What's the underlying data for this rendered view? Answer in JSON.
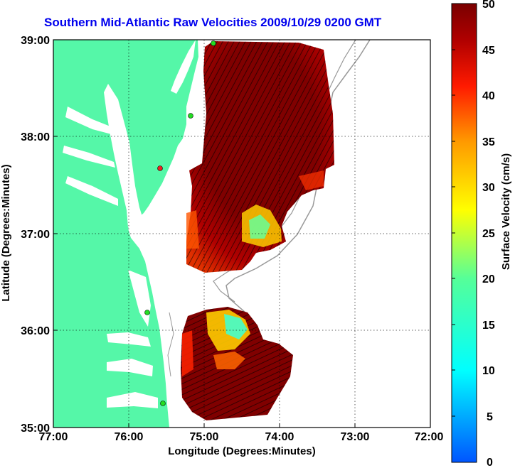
{
  "title": "Southern Mid-Atlantic Raw Velocities 2009/10/29 0200 GMT",
  "axes": {
    "xlabel": "Longitude (Degrees:Minutes)",
    "ylabel": "Latitude (Degrees:Minutes)",
    "x_ticks": [
      "77:00",
      "76:00",
      "75:00",
      "74:00",
      "73:00",
      "72:00"
    ],
    "y_ticks": [
      "39:00",
      "38:00",
      "37:00",
      "36:00",
      "35:00"
    ],
    "x_range": [
      -77,
      -72
    ],
    "y_range": [
      35,
      39
    ],
    "grid": true
  },
  "colorbar": {
    "label": "Surface Velocity (cm/s)",
    "ticks": [
      "50",
      "45",
      "40",
      "35",
      "30",
      "25",
      "20",
      "15",
      "10",
      "5",
      "0"
    ],
    "range": [
      0,
      50
    ]
  },
  "colors": {
    "land": "#55f7a8",
    "coast": "#000000",
    "isobath": "#999999",
    "high_velocity": "#7a0000",
    "title": "#0000ee"
  },
  "stations": [
    {
      "lon": -74.75,
      "lat": 38.97,
      "status": "active"
    },
    {
      "lon": -75.1,
      "lat": 38.22,
      "status": "active"
    },
    {
      "lon": -75.5,
      "lat": 37.7,
      "status": "inactive"
    },
    {
      "lon": -75.35,
      "lat": 36.18,
      "status": "active"
    },
    {
      "lon": -75.33,
      "lat": 35.25,
      "status": "active"
    }
  ]
}
